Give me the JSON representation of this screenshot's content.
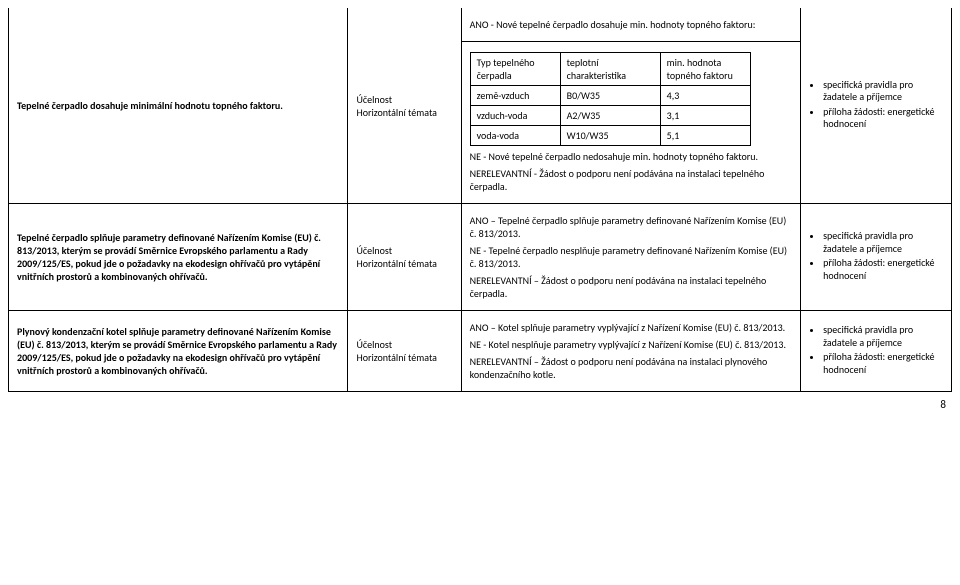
{
  "page_number": "8",
  "row1": {
    "col1": "Tepelné čerpadlo dosahuje minimální hodnotu topného faktoru.",
    "col2_line1": "Účelnost",
    "col2_line2": "Horizontální témata",
    "col3_top": "ANO - Nové tepelné čerpadlo dosahuje min. hodnoty topného faktoru:",
    "inner_table": {
      "headers": [
        "Typ tepelného čerpadla",
        "teplotní charakteristika",
        "min. hodnota topného faktoru"
      ],
      "rows": [
        [
          "země-vzduch",
          "B0/W35",
          "4,3"
        ],
        [
          "vzduch-voda",
          "A2/W35",
          "3,1"
        ],
        [
          "voda-voda",
          "W10/W35",
          "5,1"
        ]
      ]
    },
    "col3_mid": "NE - Nové tepelné čerpadlo nedosahuje min. hodnoty topného faktoru.",
    "col3_bot": "NERELEVANTNÍ - Žádost o podporu není podávána na instalaci tepelného čerpadla.",
    "bullets": [
      "specifická pravidla pro žadatele a příjemce",
      "příloha žádosti: energetické hodnocení"
    ]
  },
  "row2": {
    "col1": "Tepelné čerpadlo splňuje parametry definované Nařízením Komise (EU) č. 813/2013, kterým se provádí Směrnice Evropského parlamentu a Rady 2009/125/ES, pokud jde o požadavky na ekodesign ohřívačů pro vytápění vnitřních prostorů a kombinovaných ohřívačů.",
    "col2_line1": "Účelnost",
    "col2_line2": "Horizontální témata",
    "col3_p1": "ANO – Tepelné čerpadlo splňuje parametry definované Nařízením Komise (EU) č. 813/2013.",
    "col3_p2": "NE - Tepelné čerpadlo nesplňuje parametry definované Nařízením Komise (EU) č. 813/2013.",
    "col3_p3": "NERELEVANTNÍ – Žádost o podporu není podávána na instalaci tepelného čerpadla.",
    "bullets": [
      "specifická pravidla pro žadatele a příjemce",
      "příloha žádosti: energetické hodnocení"
    ]
  },
  "row3": {
    "col1": "Plynový kondenzační kotel splňuje parametry definované Nařízením Komise (EU) č. 813/2013, kterým se provádí Směrnice Evropského parlamentu a Rady 2009/125/ES, pokud jde o požadavky na ekodesign ohřívačů pro vytápění vnitřních prostorů a kombinovaných ohřívačů.",
    "col2_line1": "Účelnost",
    "col2_line2": "Horizontální témata",
    "col3_p1": "ANO – Kotel splňuje parametry vyplývající z Nařízení Komise (EU) č. 813/2013.",
    "col3_p2": "NE - Kotel nesplňuje parametry vyplývající z Nařízení Komise (EU) č. 813/2013.",
    "col3_p3": "NERELEVANTNÍ – Žádost o podporu není podávána na instalaci plynového kondenzačního kotle.",
    "bullets": [
      "specifická pravidla pro žadatele a příjemce",
      "příloha žádosti: energetické hodnocení"
    ]
  }
}
